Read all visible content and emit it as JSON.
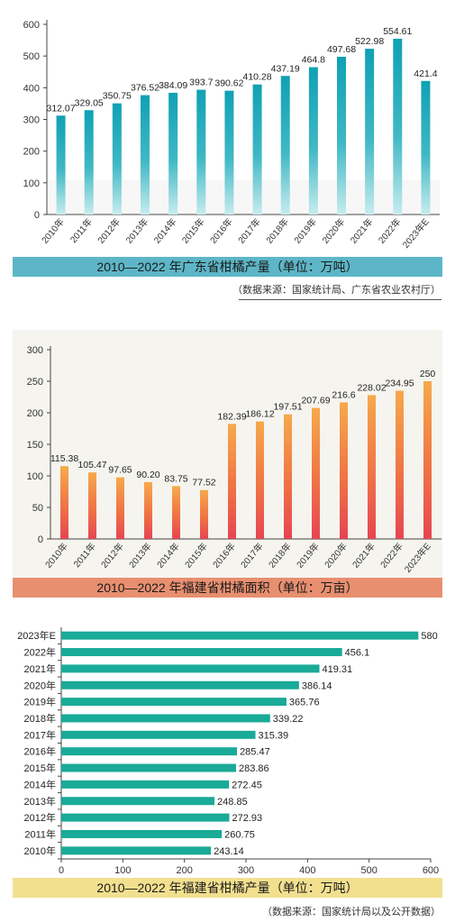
{
  "charts": [
    {
      "type": "bar",
      "title": "2010—2022 年广东省柑橘产量（单位：万吨）",
      "source": "（数据来源：国家统计局、广东省农业农村厅）",
      "categories": [
        "2010年",
        "2011年",
        "2012年",
        "2013年",
        "2014年",
        "2015年",
        "2016年",
        "2017年",
        "2018年",
        "2019年",
        "2020年",
        "2021年",
        "2022年",
        "2023年E"
      ],
      "values": [
        312.07,
        329.05,
        350.75,
        376.52,
        384.09,
        393.7,
        390.62,
        410.28,
        437.19,
        464.8,
        497.68,
        522.98,
        554.61,
        421.4
      ],
      "value_labels": [
        "312.07",
        "329.05",
        "350.75",
        "376.52",
        "384.09",
        "393.7",
        "390.62",
        "410.28",
        "437.19",
        "464.8",
        "497.68",
        "522.98",
        "554.61",
        "421.4"
      ],
      "ylim": [
        0,
        600
      ],
      "yticks": [
        "0",
        "100",
        "200",
        "300",
        "400",
        "500",
        "600"
      ],
      "color": "#1aa6b7"
    },
    {
      "type": "bar",
      "title": "2010—2022 年福建省柑橘面积（单位：万亩）",
      "categories": [
        "2010年",
        "2011年",
        "2012年",
        "2013年",
        "2014年",
        "2015年",
        "2016年",
        "2017年",
        "2018年",
        "2019年",
        "2020年",
        "2021年",
        "2022年",
        "2023年E"
      ],
      "values": [
        115.38,
        105.47,
        97.65,
        90.2,
        83.75,
        77.52,
        182.39,
        186.12,
        197.51,
        207.69,
        216.6,
        228.02,
        234.95,
        250
      ],
      "value_labels": [
        "115.38",
        "105.47",
        "97.65",
        "90.20",
        "83.75",
        "77.52",
        "182.39",
        "186.12",
        "197.51",
        "207.69",
        "216.6",
        "228.02",
        "234.95",
        "250"
      ],
      "ylim": [
        0,
        300
      ],
      "yticks": [
        "0",
        "50",
        "100",
        "150",
        "200",
        "250",
        "300"
      ],
      "color": "#f08a3c"
    },
    {
      "type": "bar",
      "orientation": "horizontal",
      "title": "2010—2022 年福建省柑橘产量（单位：万吨）",
      "source": "（数据来源：国家统计局以及公开数据）",
      "categories": [
        "2023年E",
        "2022年",
        "2021年",
        "2020年",
        "2019年",
        "2018年",
        "2017年",
        "2016年",
        "2015年",
        "2014年",
        "2013年",
        "2012年",
        "2011年",
        "2010年"
      ],
      "values": [
        580,
        456.1,
        419.31,
        386.14,
        365.76,
        339.22,
        315.39,
        285.47,
        283.86,
        272.45,
        248.85,
        272.93,
        260.75,
        243.14
      ],
      "value_labels": [
        "580",
        "456.1",
        "419.31",
        "386.14",
        "365.76",
        "339.22",
        "315.39",
        "285.47",
        "283.86",
        "272.45",
        "248.85",
        "272.93",
        "260.75",
        "243.14"
      ],
      "xlim": [
        0,
        600
      ],
      "xticks": [
        "0",
        "100",
        "200",
        "300",
        "400",
        "500",
        "600"
      ],
      "color": "#1aaa98"
    }
  ]
}
